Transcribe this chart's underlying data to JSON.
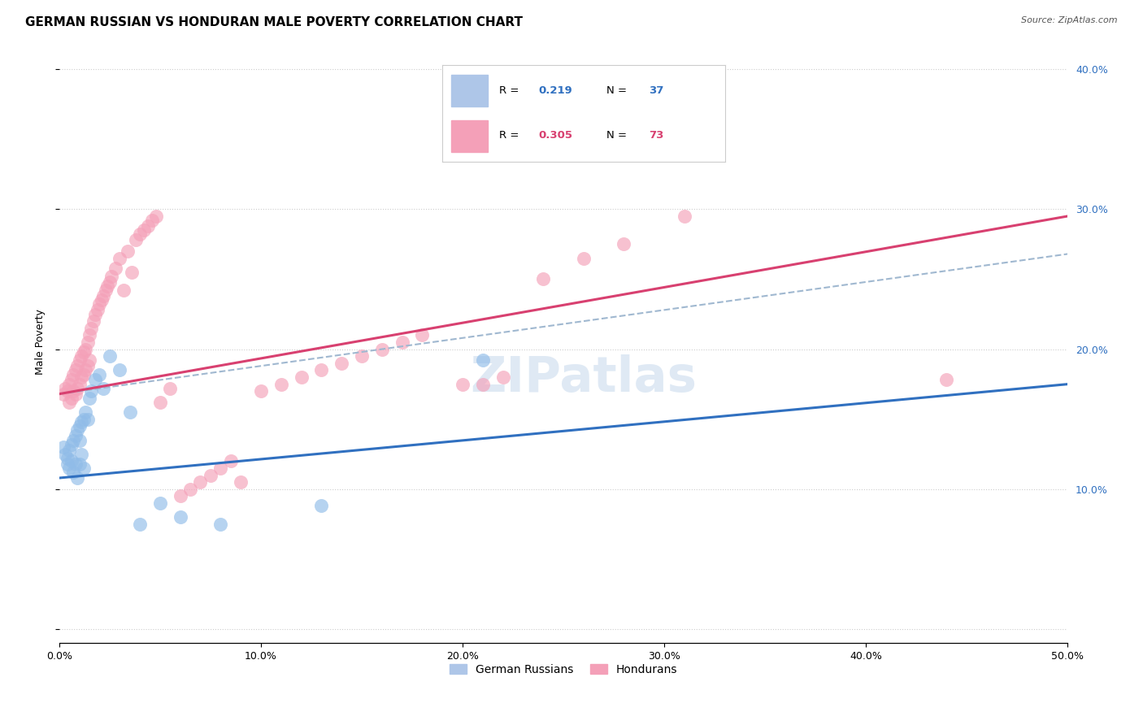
{
  "title": "GERMAN RUSSIAN VS HONDURAN MALE POVERTY CORRELATION CHART",
  "source": "Source: ZipAtlas.com",
  "ylabel": "Male Poverty",
  "xlim": [
    0.0,
    0.5
  ],
  "ylim": [
    -0.01,
    0.42
  ],
  "watermark": "ZIPatlas",
  "blue_scatter_color": "#90bce8",
  "pink_scatter_color": "#f4a0b8",
  "blue_line_color": "#3070c0",
  "pink_line_color": "#d84070",
  "dash_line_color": "#a0b8d0",
  "title_fontsize": 11,
  "axis_label_fontsize": 9,
  "tick_fontsize": 9,
  "blue_x": [
    0.002,
    0.003,
    0.004,
    0.004,
    0.005,
    0.005,
    0.006,
    0.006,
    0.007,
    0.007,
    0.008,
    0.008,
    0.009,
    0.009,
    0.01,
    0.01,
    0.01,
    0.011,
    0.011,
    0.012,
    0.012,
    0.013,
    0.014,
    0.015,
    0.016,
    0.018,
    0.02,
    0.022,
    0.025,
    0.03,
    0.035,
    0.04,
    0.05,
    0.06,
    0.08,
    0.13,
    0.21
  ],
  "blue_y": [
    0.13,
    0.125,
    0.122,
    0.118,
    0.128,
    0.115,
    0.132,
    0.12,
    0.135,
    0.112,
    0.138,
    0.118,
    0.142,
    0.108,
    0.145,
    0.135,
    0.118,
    0.148,
    0.125,
    0.15,
    0.115,
    0.155,
    0.15,
    0.165,
    0.17,
    0.178,
    0.182,
    0.172,
    0.195,
    0.185,
    0.155,
    0.075,
    0.09,
    0.08,
    0.075,
    0.088,
    0.192
  ],
  "pink_x": [
    0.002,
    0.003,
    0.004,
    0.005,
    0.005,
    0.006,
    0.006,
    0.007,
    0.007,
    0.008,
    0.008,
    0.009,
    0.009,
    0.01,
    0.01,
    0.011,
    0.011,
    0.012,
    0.012,
    0.013,
    0.013,
    0.014,
    0.014,
    0.015,
    0.015,
    0.016,
    0.017,
    0.018,
    0.019,
    0.02,
    0.021,
    0.022,
    0.023,
    0.024,
    0.025,
    0.026,
    0.028,
    0.03,
    0.032,
    0.034,
    0.036,
    0.038,
    0.04,
    0.042,
    0.044,
    0.046,
    0.048,
    0.05,
    0.055,
    0.06,
    0.065,
    0.07,
    0.075,
    0.08,
    0.085,
    0.09,
    0.1,
    0.11,
    0.12,
    0.13,
    0.14,
    0.15,
    0.16,
    0.17,
    0.18,
    0.2,
    0.21,
    0.22,
    0.24,
    0.26,
    0.28,
    0.44,
    0.31
  ],
  "pink_y": [
    0.168,
    0.172,
    0.17,
    0.175,
    0.162,
    0.178,
    0.165,
    0.182,
    0.17,
    0.185,
    0.168,
    0.188,
    0.172,
    0.192,
    0.175,
    0.195,
    0.18,
    0.198,
    0.182,
    0.2,
    0.185,
    0.205,
    0.188,
    0.21,
    0.192,
    0.215,
    0.22,
    0.225,
    0.228,
    0.232,
    0.235,
    0.238,
    0.242,
    0.245,
    0.248,
    0.252,
    0.258,
    0.265,
    0.242,
    0.27,
    0.255,
    0.278,
    0.282,
    0.285,
    0.288,
    0.292,
    0.295,
    0.162,
    0.172,
    0.095,
    0.1,
    0.105,
    0.11,
    0.115,
    0.12,
    0.105,
    0.17,
    0.175,
    0.18,
    0.185,
    0.19,
    0.195,
    0.2,
    0.205,
    0.21,
    0.175,
    0.175,
    0.18,
    0.25,
    0.265,
    0.275,
    0.178,
    0.295
  ],
  "blue_line": {
    "x0": 0.0,
    "x1": 0.5,
    "y0": 0.108,
    "y1": 0.175
  },
  "pink_line": {
    "x0": 0.0,
    "x1": 0.5,
    "y0": 0.168,
    "y1": 0.295
  },
  "dash_line": {
    "x0": 0.0,
    "x1": 0.5,
    "y0": 0.168,
    "y1": 0.268
  }
}
